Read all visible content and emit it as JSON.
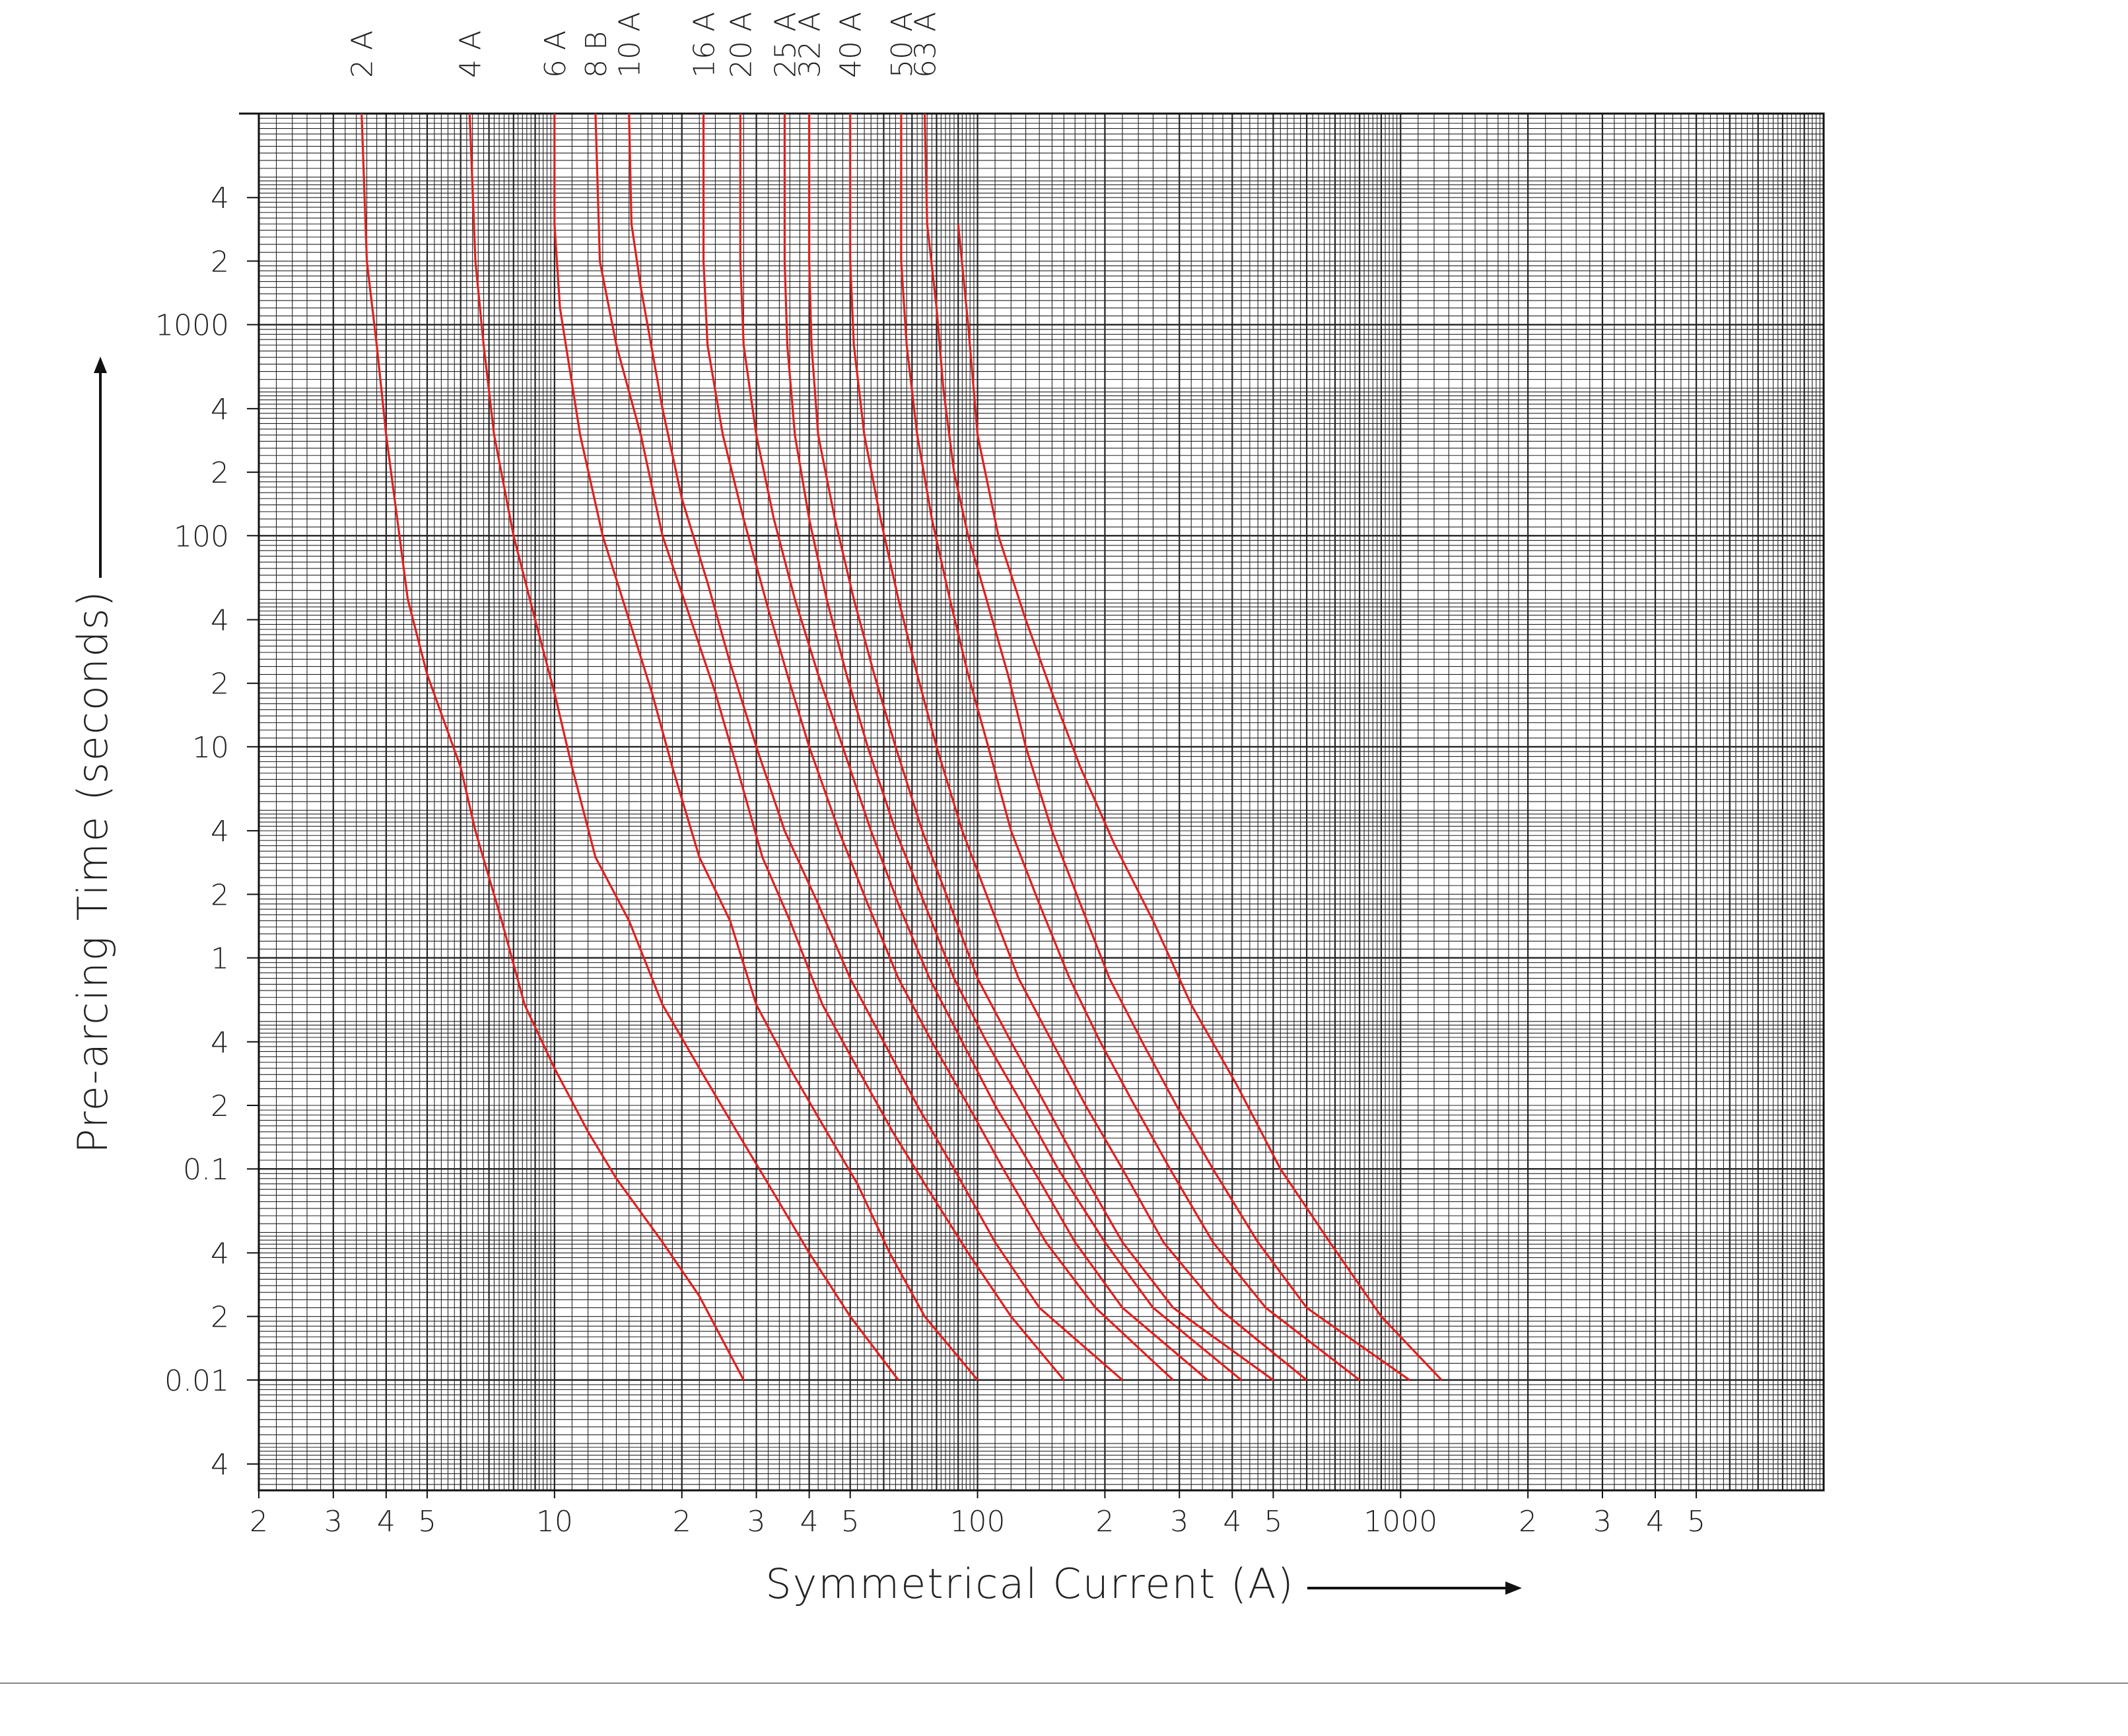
{
  "chart_data": {
    "type": "line",
    "xlabel": "Symmetrical Current (A)",
    "ylabel": "Pre-arcing Time (seconds)",
    "x_scale": "log",
    "y_scale": "log",
    "xlim": [
      2,
      10000
    ],
    "ylim": [
      0.003,
      10000
    ],
    "grid": true,
    "line_color": "#e02020",
    "x_tick_labels": [
      {
        "v": 2,
        "t": "2"
      },
      {
        "v": 3,
        "t": "3"
      },
      {
        "v": 4,
        "t": "4"
      },
      {
        "v": 5,
        "t": "5"
      },
      {
        "v": 10,
        "t": "10"
      },
      {
        "v": 20,
        "t": "2"
      },
      {
        "v": 30,
        "t": "3"
      },
      {
        "v": 40,
        "t": "4"
      },
      {
        "v": 50,
        "t": "5"
      },
      {
        "v": 100,
        "t": "100"
      },
      {
        "v": 200,
        "t": "2"
      },
      {
        "v": 300,
        "t": "3"
      },
      {
        "v": 400,
        "t": "4"
      },
      {
        "v": 500,
        "t": "5"
      },
      {
        "v": 1000,
        "t": "1000"
      },
      {
        "v": 2000,
        "t": "2"
      },
      {
        "v": 3000,
        "t": "3"
      },
      {
        "v": 4000,
        "t": "4"
      },
      {
        "v": 5000,
        "t": "5"
      }
    ],
    "y_tick_labels": [
      {
        "v": 4000,
        "t": "4"
      },
      {
        "v": 2000,
        "t": "2"
      },
      {
        "v": 1000,
        "t": "1000"
      },
      {
        "v": 400,
        "t": "4"
      },
      {
        "v": 200,
        "t": "2"
      },
      {
        "v": 100,
        "t": "100"
      },
      {
        "v": 40,
        "t": "4"
      },
      {
        "v": 20,
        "t": "2"
      },
      {
        "v": 10,
        "t": "10"
      },
      {
        "v": 4,
        "t": "4"
      },
      {
        "v": 2,
        "t": "2"
      },
      {
        "v": 1,
        "t": "1"
      },
      {
        "v": 0.4,
        "t": "4"
      },
      {
        "v": 0.2,
        "t": "2"
      },
      {
        "v": 0.1,
        "t": "0.1"
      },
      {
        "v": 0.04,
        "t": "4"
      },
      {
        "v": 0.02,
        "t": "2"
      },
      {
        "v": 0.01,
        "t": "0.01"
      },
      {
        "v": 0.004,
        "t": "4"
      }
    ],
    "series": [
      {
        "name": "2 A",
        "label_x": 3.5,
        "points": [
          [
            3.5,
            10000
          ],
          [
            3.6,
            2000
          ],
          [
            3.8,
            800
          ],
          [
            4.0,
            300
          ],
          [
            4.3,
            100
          ],
          [
            4.5,
            50
          ],
          [
            5,
            22
          ],
          [
            6,
            8
          ],
          [
            6.5,
            4
          ],
          [
            7.5,
            1.5
          ],
          [
            8.5,
            0.6
          ],
          [
            10,
            0.3
          ],
          [
            12,
            0.15
          ],
          [
            14,
            0.09
          ],
          [
            18,
            0.045
          ],
          [
            22,
            0.025
          ],
          [
            28,
            0.01
          ]
        ]
      },
      {
        "name": "4 A",
        "label_x": 6.3,
        "points": [
          [
            6.3,
            10000
          ],
          [
            6.5,
            2000
          ],
          [
            6.8,
            800
          ],
          [
            7.2,
            300
          ],
          [
            8,
            100
          ],
          [
            9,
            40
          ],
          [
            10,
            18
          ],
          [
            11,
            8
          ],
          [
            12.5,
            3
          ],
          [
            15,
            1.5
          ],
          [
            18,
            0.6
          ],
          [
            22,
            0.3
          ],
          [
            27,
            0.15
          ],
          [
            32,
            0.085
          ],
          [
            40,
            0.04
          ],
          [
            50,
            0.02
          ],
          [
            65,
            0.01
          ]
        ]
      },
      {
        "name": "6 A",
        "label_x": 10,
        "points": [
          [
            10,
            10000
          ],
          [
            10,
            3000
          ],
          [
            10.3,
            1200
          ],
          [
            11.5,
            300
          ],
          [
            13,
            100
          ],
          [
            15,
            40
          ],
          [
            17,
            18
          ],
          [
            19,
            8
          ],
          [
            22,
            3
          ],
          [
            26,
            1.5
          ],
          [
            30,
            0.6
          ],
          [
            36,
            0.3
          ],
          [
            44,
            0.15
          ],
          [
            52,
            0.085
          ],
          [
            62,
            0.04
          ],
          [
            75,
            0.02
          ],
          [
            100,
            0.01
          ]
        ]
      },
      {
        "name": "8 B",
        "label_x": 12.5,
        "points": [
          [
            12.5,
            10000
          ],
          [
            12.8,
            2000
          ],
          [
            14,
            800
          ],
          [
            16,
            300
          ],
          [
            18,
            100
          ],
          [
            21,
            40
          ],
          [
            24,
            18
          ],
          [
            27,
            8
          ],
          [
            31,
            3
          ],
          [
            36,
            1.5
          ],
          [
            43,
            0.6
          ],
          [
            52,
            0.3
          ],
          [
            63,
            0.15
          ],
          [
            75,
            0.085
          ],
          [
            95,
            0.04
          ],
          [
            120,
            0.02
          ],
          [
            160,
            0.01
          ]
        ]
      },
      {
        "name": "10 A",
        "label_x": 15,
        "points": [
          [
            15,
            10000
          ],
          [
            15.2,
            3000
          ],
          [
            16,
            1500
          ],
          [
            18,
            400
          ],
          [
            20,
            150
          ],
          [
            23,
            60
          ],
          [
            26,
            25
          ],
          [
            30,
            10
          ],
          [
            35,
            4
          ],
          [
            42,
            1.8
          ],
          [
            50,
            0.8
          ],
          [
            60,
            0.4
          ],
          [
            72,
            0.2
          ],
          [
            88,
            0.1
          ],
          [
            110,
            0.045
          ],
          [
            140,
            0.022
          ],
          [
            220,
            0.01
          ]
        ]
      },
      {
        "name": "16 A",
        "label_x": 22.5,
        "points": [
          [
            22.5,
            10000
          ],
          [
            22.5,
            2000
          ],
          [
            23,
            800
          ],
          [
            25,
            300
          ],
          [
            28,
            120
          ],
          [
            32,
            45
          ],
          [
            36,
            20
          ],
          [
            40,
            10
          ],
          [
            47,
            4
          ],
          [
            55,
            1.8
          ],
          [
            65,
            0.8
          ],
          [
            78,
            0.4
          ],
          [
            95,
            0.2
          ],
          [
            115,
            0.1
          ],
          [
            145,
            0.045
          ],
          [
            190,
            0.022
          ],
          [
            290,
            0.01
          ]
        ]
      },
      {
        "name": "20 A",
        "label_x": 27.5,
        "points": [
          [
            27.5,
            10000
          ],
          [
            27.5,
            2000
          ],
          [
            28,
            800
          ],
          [
            30,
            300
          ],
          [
            33,
            120
          ],
          [
            37,
            50
          ],
          [
            42,
            22
          ],
          [
            48,
            10
          ],
          [
            56,
            4
          ],
          [
            65,
            1.8
          ],
          [
            77,
            0.8
          ],
          [
            92,
            0.4
          ],
          [
            110,
            0.2
          ],
          [
            135,
            0.1
          ],
          [
            170,
            0.045
          ],
          [
            220,
            0.022
          ],
          [
            350,
            0.01
          ]
        ]
      },
      {
        "name": "25 A",
        "label_x": 35,
        "points": [
          [
            35,
            10000
          ],
          [
            35,
            2000
          ],
          [
            35.5,
            800
          ],
          [
            37,
            300
          ],
          [
            40,
            120
          ],
          [
            44,
            50
          ],
          [
            49,
            22
          ],
          [
            55,
            10
          ],
          [
            64,
            4
          ],
          [
            75,
            1.8
          ],
          [
            88,
            0.8
          ],
          [
            105,
            0.4
          ],
          [
            128,
            0.2
          ],
          [
            155,
            0.1
          ],
          [
            200,
            0.045
          ],
          [
            260,
            0.022
          ],
          [
            420,
            0.01
          ]
        ]
      },
      {
        "name": "32 A",
        "label_x": 40,
        "points": [
          [
            40,
            10000
          ],
          [
            40,
            2000
          ],
          [
            40.5,
            800
          ],
          [
            42,
            300
          ],
          [
            46,
            120
          ],
          [
            51,
            50
          ],
          [
            57,
            22
          ],
          [
            64,
            10
          ],
          [
            74,
            4
          ],
          [
            86,
            1.8
          ],
          [
            100,
            0.8
          ],
          [
            120,
            0.4
          ],
          [
            145,
            0.2
          ],
          [
            175,
            0.1
          ],
          [
            220,
            0.045
          ],
          [
            290,
            0.022
          ],
          [
            500,
            0.01
          ]
        ]
      },
      {
        "name": "40 A",
        "label_x": 50,
        "points": [
          [
            50,
            10000
          ],
          [
            50,
            2000
          ],
          [
            51,
            800
          ],
          [
            54,
            300
          ],
          [
            59,
            120
          ],
          [
            65,
            50
          ],
          [
            72,
            22
          ],
          [
            80,
            10
          ],
          [
            92,
            4
          ],
          [
            107,
            1.8
          ],
          [
            125,
            0.8
          ],
          [
            150,
            0.4
          ],
          [
            180,
            0.2
          ],
          [
            220,
            0.1
          ],
          [
            275,
            0.045
          ],
          [
            370,
            0.022
          ],
          [
            600,
            0.01
          ]
        ]
      },
      {
        "name": "50 A",
        "label_x": 66,
        "points": [
          [
            66,
            10000
          ],
          [
            66,
            2000
          ],
          [
            68,
            800
          ],
          [
            72,
            300
          ],
          [
            78,
            120
          ],
          [
            86,
            50
          ],
          [
            95,
            22
          ],
          [
            106,
            10
          ],
          [
            120,
            4
          ],
          [
            140,
            1.8
          ],
          [
            165,
            0.8
          ],
          [
            195,
            0.4
          ],
          [
            235,
            0.2
          ],
          [
            285,
            0.1
          ],
          [
            360,
            0.045
          ],
          [
            480,
            0.022
          ],
          [
            800,
            0.01
          ]
        ]
      },
      {
        "name": "63 A",
        "label_x": 75,
        "points": [
          [
            75,
            10000
          ],
          [
            76,
            3000
          ],
          [
            80,
            1200
          ],
          [
            83,
            500
          ],
          [
            88,
            200
          ],
          [
            95,
            100
          ],
          [
            105,
            50
          ],
          [
            118,
            22
          ],
          [
            130,
            10
          ],
          [
            150,
            4
          ],
          [
            175,
            1.8
          ],
          [
            205,
            0.8
          ],
          [
            245,
            0.4
          ],
          [
            295,
            0.2
          ],
          [
            360,
            0.1
          ],
          [
            460,
            0.045
          ],
          [
            600,
            0.022
          ],
          [
            1050,
            0.01
          ]
        ]
      }
    ]
  },
  "extra_series": [
    {
      "points": [
        [
          90,
          3000
        ],
        [
          95,
          1000
        ],
        [
          100,
          300
        ],
        [
          112,
          100
        ],
        [
          130,
          40
        ],
        [
          150,
          18
        ],
        [
          175,
          8
        ],
        [
          210,
          3.5
        ],
        [
          260,
          1.5
        ],
        [
          320,
          0.6
        ],
        [
          410,
          0.25
        ],
        [
          520,
          0.1
        ],
        [
          680,
          0.045
        ],
        [
          900,
          0.02
        ],
        [
          1250,
          0.01
        ]
      ]
    }
  ]
}
